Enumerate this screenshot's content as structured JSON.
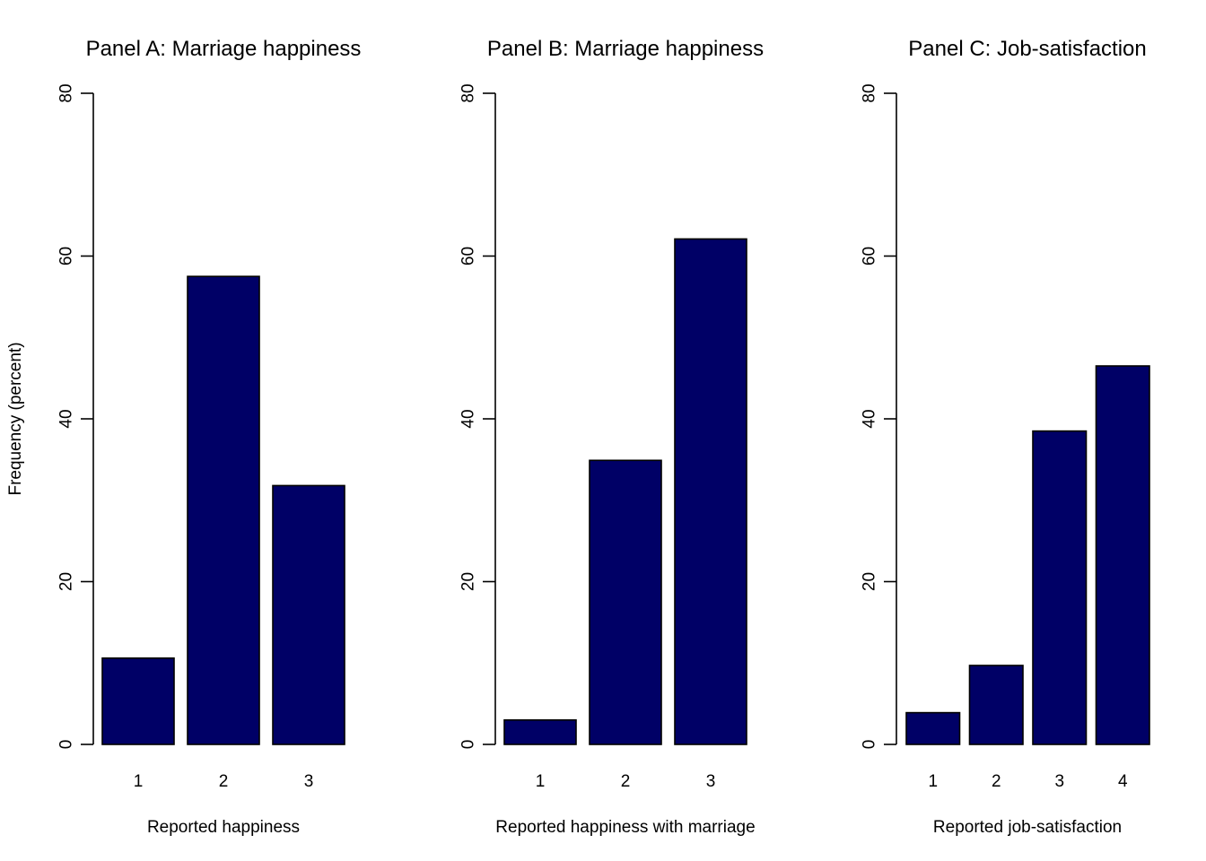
{
  "y_axis_label": "Frequency (percent)",
  "chart_data": [
    {
      "type": "bar",
      "title": "Panel A: Marriage happiness",
      "xlabel": "Reported happiness",
      "ylabel": "Frequency (percent)",
      "categories": [
        "1",
        "2",
        "3"
      ],
      "values": [
        10.6,
        57.5,
        31.8
      ],
      "ylim": [
        0,
        80
      ],
      "yticks": [
        0,
        20,
        40,
        60,
        80
      ],
      "bar_color": "#000066",
      "grid": false
    },
    {
      "type": "bar",
      "title": "Panel B: Marriage happiness",
      "xlabel": "Reported happiness with marriage",
      "ylabel": "",
      "categories": [
        "1",
        "2",
        "3"
      ],
      "values": [
        3.0,
        34.9,
        62.1
      ],
      "ylim": [
        0,
        80
      ],
      "yticks": [
        0,
        20,
        40,
        60,
        80
      ],
      "bar_color": "#000066",
      "grid": false
    },
    {
      "type": "bar",
      "title": "Panel C: Job-satisfaction",
      "xlabel": "Reported job-satisfaction",
      "ylabel": "",
      "categories": [
        "1",
        "2",
        "3",
        "4"
      ],
      "values": [
        3.9,
        9.7,
        38.5,
        46.5
      ],
      "ylim": [
        0,
        80
      ],
      "yticks": [
        0,
        20,
        40,
        60,
        80
      ],
      "bar_color": "#000066",
      "grid": false
    }
  ]
}
